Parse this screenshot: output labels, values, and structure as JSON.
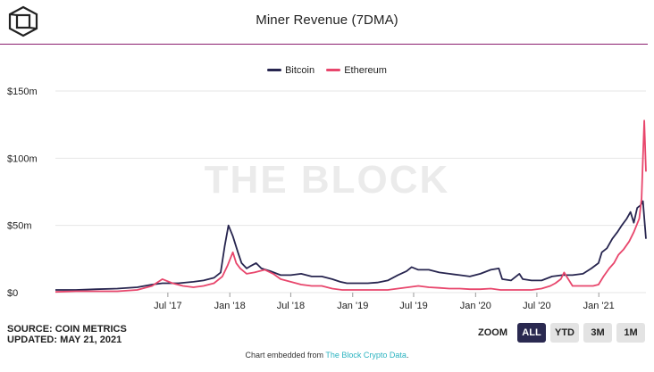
{
  "header": {
    "title": "Miner Revenue (7DMA)"
  },
  "logo": {
    "icon": "the-block-cube-logo"
  },
  "watermark": "THE BLOCK",
  "colors": {
    "bitcoin": "#27254f",
    "ethereum": "#e8466c",
    "divider": "#8b1d6e",
    "active_button": "#2a2950",
    "link": "#2bb3c0"
  },
  "source": {
    "line1": "SOURCE: COIN METRICS",
    "line2": "UPDATED: MAY 21, 2021"
  },
  "zoom": {
    "label": "ZOOM",
    "buttons": [
      "ALL",
      "YTD",
      "3M",
      "1M"
    ],
    "active": "ALL"
  },
  "footer": {
    "prefix": "Chart embedded from ",
    "link_text": "The Block Crypto Data",
    "suffix": "."
  },
  "chart_data": {
    "type": "line",
    "title": "Miner Revenue (7DMA)",
    "xlabel": "",
    "ylabel": "",
    "ylim": [
      0,
      150
    ],
    "xlim": [
      "2016-08-01",
      "2021-05-21"
    ],
    "y_ticks": [
      {
        "value": 0,
        "label": "$0"
      },
      {
        "value": 50,
        "label": "$50m"
      },
      {
        "value": 100,
        "label": "$100m"
      },
      {
        "value": 150,
        "label": "$150m"
      }
    ],
    "x_ticks": [
      {
        "value": "2017-07-01",
        "label": "Jul '17"
      },
      {
        "value": "2018-01-01",
        "label": "Jan '18"
      },
      {
        "value": "2018-07-01",
        "label": "Jul '18"
      },
      {
        "value": "2019-01-01",
        "label": "Jan '19"
      },
      {
        "value": "2019-07-01",
        "label": "Jul '19"
      },
      {
        "value": "2020-01-01",
        "label": "Jan '20"
      },
      {
        "value": "2020-07-01",
        "label": "Jul '20"
      },
      {
        "value": "2021-01-01",
        "label": "Jan '21"
      }
    ],
    "legend_position": "top-center",
    "grid": "horizontal",
    "series": [
      {
        "name": "Bitcoin",
        "x": [
          "2016-08-01",
          "2016-10-01",
          "2016-12-01",
          "2017-02-01",
          "2017-04-01",
          "2017-05-15",
          "2017-06-15",
          "2017-08-01",
          "2017-09-15",
          "2017-10-15",
          "2017-11-15",
          "2017-12-05",
          "2017-12-17",
          "2017-12-28",
          "2018-01-10",
          "2018-01-25",
          "2018-02-05",
          "2018-02-20",
          "2018-03-05",
          "2018-03-20",
          "2018-04-05",
          "2018-05-01",
          "2018-06-01",
          "2018-07-01",
          "2018-08-01",
          "2018-09-01",
          "2018-10-01",
          "2018-11-01",
          "2018-11-25",
          "2018-12-15",
          "2019-01-15",
          "2019-02-15",
          "2019-03-15",
          "2019-04-15",
          "2019-05-15",
          "2019-06-10",
          "2019-06-25",
          "2019-07-15",
          "2019-08-15",
          "2019-09-15",
          "2019-10-15",
          "2019-11-15",
          "2019-12-15",
          "2020-01-15",
          "2020-02-15",
          "2020-03-10",
          "2020-03-20",
          "2020-04-15",
          "2020-05-10",
          "2020-05-20",
          "2020-06-15",
          "2020-07-15",
          "2020-08-15",
          "2020-09-15",
          "2020-10-15",
          "2020-11-15",
          "2020-12-10",
          "2020-12-31",
          "2021-01-10",
          "2021-01-25",
          "2021-02-10",
          "2021-02-25",
          "2021-03-10",
          "2021-03-25",
          "2021-04-05",
          "2021-04-15",
          "2021-04-25",
          "2021-05-05",
          "2021-05-12",
          "2021-05-21"
        ],
        "values": [
          2,
          2,
          2.5,
          3,
          4,
          6,
          7,
          7,
          8,
          9,
          11,
          15,
          35,
          50,
          42,
          30,
          22,
          18,
          20,
          22,
          18,
          16,
          13,
          13,
          14,
          12,
          12,
          10,
          8,
          7,
          7,
          7,
          7.5,
          9,
          13,
          16,
          19,
          17,
          17,
          15,
          14,
          13,
          12,
          14,
          17,
          18,
          10,
          9,
          14,
          10,
          9,
          9,
          12,
          13,
          13,
          14,
          18,
          22,
          30,
          33,
          40,
          45,
          50,
          55,
          60,
          52,
          63,
          65,
          68,
          40
        ]
      },
      {
        "name": "Ethereum",
        "x": [
          "2016-08-01",
          "2016-10-01",
          "2016-12-01",
          "2017-02-01",
          "2017-04-01",
          "2017-05-15",
          "2017-06-15",
          "2017-07-15",
          "2017-08-15",
          "2017-09-15",
          "2017-10-15",
          "2017-11-15",
          "2017-12-10",
          "2017-12-25",
          "2018-01-10",
          "2018-01-20",
          "2018-02-01",
          "2018-02-20",
          "2018-03-15",
          "2018-04-15",
          "2018-05-10",
          "2018-06-01",
          "2018-07-01",
          "2018-08-01",
          "2018-09-01",
          "2018-10-01",
          "2018-11-01",
          "2018-12-01",
          "2019-01-15",
          "2019-02-15",
          "2019-03-15",
          "2019-04-15",
          "2019-05-15",
          "2019-06-15",
          "2019-07-15",
          "2019-08-15",
          "2019-09-15",
          "2019-10-15",
          "2019-11-15",
          "2019-12-15",
          "2020-01-15",
          "2020-02-15",
          "2020-03-15",
          "2020-04-15",
          "2020-05-15",
          "2020-06-15",
          "2020-07-15",
          "2020-08-10",
          "2020-08-25",
          "2020-09-10",
          "2020-09-20",
          "2020-10-15",
          "2020-11-15",
          "2020-12-15",
          "2020-12-31",
          "2021-01-15",
          "2021-02-01",
          "2021-02-15",
          "2021-02-28",
          "2021-03-15",
          "2021-04-01",
          "2021-04-15",
          "2021-05-01",
          "2021-05-08",
          "2021-05-12",
          "2021-05-16",
          "2021-05-21"
        ],
        "values": [
          0.5,
          1,
          1,
          1,
          2,
          5,
          10,
          7,
          5,
          4,
          5,
          7,
          12,
          20,
          30,
          22,
          18,
          14,
          15,
          17,
          14,
          10,
          8,
          6,
          5,
          5,
          3,
          2,
          2,
          2,
          2,
          2,
          3,
          4,
          5,
          4,
          3.5,
          3,
          3,
          2.5,
          2.5,
          3,
          2,
          2,
          2,
          2,
          3,
          5,
          7,
          10,
          15,
          5,
          5,
          5,
          6,
          12,
          18,
          22,
          28,
          32,
          38,
          45,
          55,
          70,
          100,
          128,
          90
        ]
      }
    ]
  }
}
